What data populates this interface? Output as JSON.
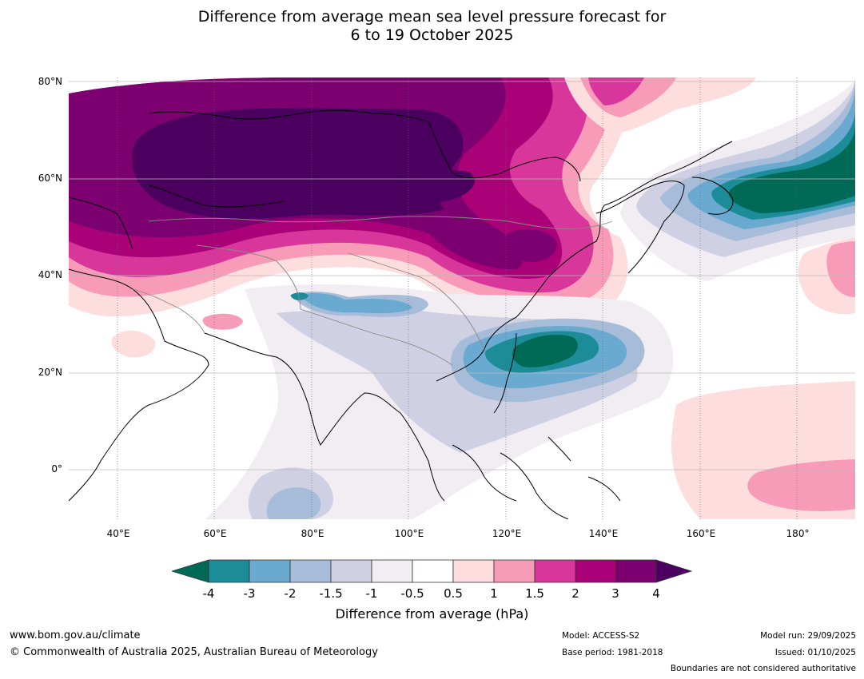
{
  "title": {
    "line1": "Difference from average mean sea level pressure forecast for",
    "line2": "6 to 19 October 2025"
  },
  "map": {
    "lat_labels": [
      "80°N",
      "60°N",
      "40°N",
      "20°N",
      "0°"
    ],
    "lon_labels": [
      "40°E",
      "60°E",
      "80°E",
      "100°E",
      "120°E",
      "140°E",
      "160°E",
      "180°"
    ],
    "lat_range": [
      -10,
      80
    ],
    "lon_range": [
      30,
      192
    ]
  },
  "colorbar": {
    "title": "Difference from average (hPa)",
    "ticks": [
      "-4",
      "-3",
      "-2",
      "-1.5",
      "-1",
      "-0.5",
      "0.5",
      "1",
      "1.5",
      "2",
      "3",
      "4"
    ],
    "colors": [
      "#006a57",
      "#1b8c98",
      "#6aaad0",
      "#a6bcd8",
      "#cfd0e4",
      "#f1edf3",
      "#ffffff",
      "#fdddde",
      "#f79bb8",
      "#d8369a",
      "#aa0078",
      "#7d0071",
      "#4b005f"
    ]
  },
  "footer": {
    "website": "www.bom.gov.au/climate",
    "copyright": "© Commonwealth of Australia 2025, Australian Bureau of Meteorology",
    "model": "Model: ACCESS-S2",
    "base_period": "Base period: 1981-2018",
    "model_run": "Model run: 29/09/2025",
    "issued": "Issued: 01/10/2025",
    "disclaimer": "Boundaries are not considered authoritative"
  }
}
